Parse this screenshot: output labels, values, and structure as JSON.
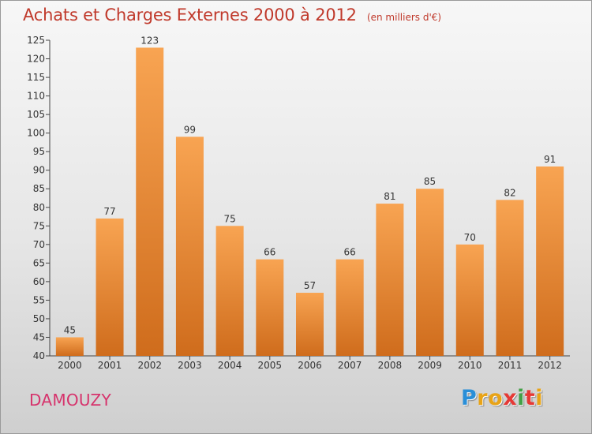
{
  "header": {
    "title": "Achats et Charges Externes 2000 à 2012",
    "unit": "(en milliers d'€)"
  },
  "chart_data": {
    "type": "bar",
    "title": "Achats et Charges Externes 2000 à 2012",
    "subtitle": "(en milliers d'€)",
    "xlabel": "",
    "ylabel": "",
    "categories": [
      "2000",
      "2001",
      "2002",
      "2003",
      "2004",
      "2005",
      "2006",
      "2007",
      "2008",
      "2009",
      "2010",
      "2011",
      "2012"
    ],
    "values": [
      45,
      77,
      123,
      99,
      75,
      66,
      57,
      66,
      81,
      85,
      70,
      82,
      91
    ],
    "ylim": [
      40,
      125
    ],
    "yticks": [
      40,
      45,
      50,
      55,
      60,
      65,
      70,
      75,
      80,
      85,
      90,
      95,
      100,
      105,
      110,
      115,
      120,
      125
    ],
    "grid": false,
    "legend": "none",
    "bar_color_top": "#f8a452",
    "bar_color_bottom": "#cf6c1c"
  },
  "footer": {
    "commune": "DAMOUZY",
    "brand": [
      "P",
      "r",
      "o",
      "x",
      "i",
      "t",
      "i"
    ],
    "brand_colors": [
      "#2a8fd8",
      "#e8a317",
      "#e8a317",
      "#e53935",
      "#43a047",
      "#e53935",
      "#e8a317"
    ]
  }
}
